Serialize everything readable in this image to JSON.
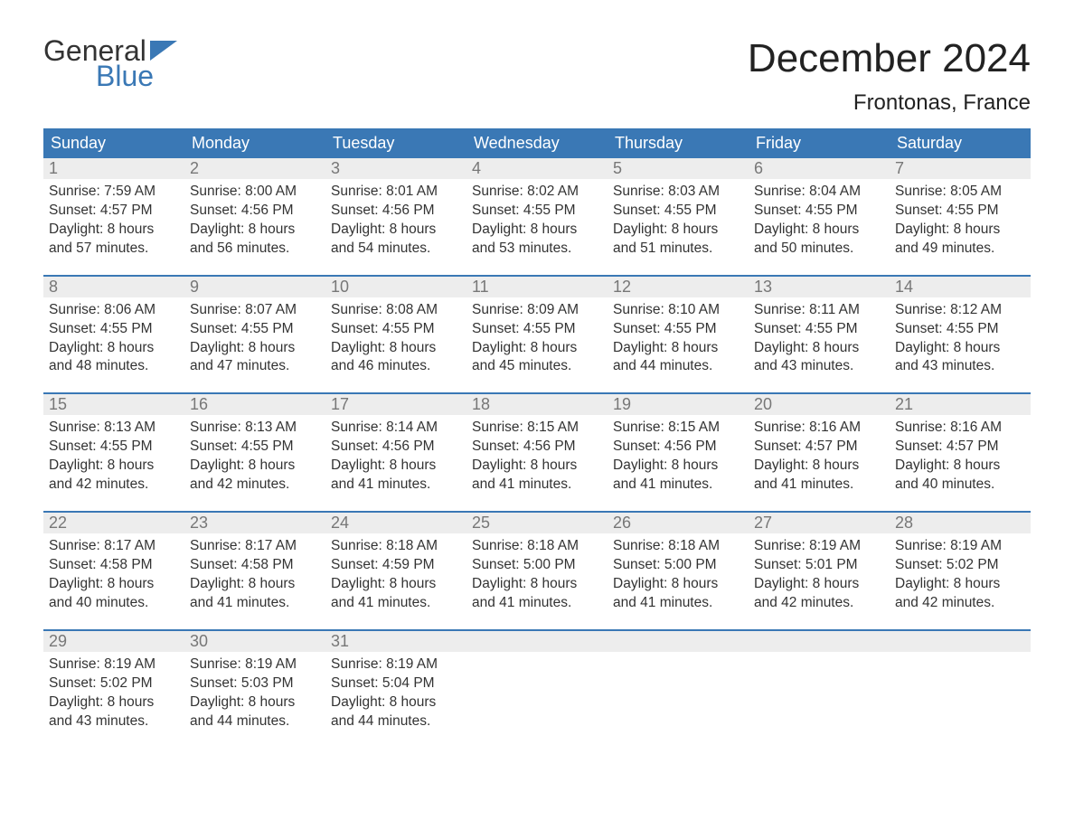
{
  "logo": {
    "word1": "General",
    "word2": "Blue",
    "accent_color": "#3a78b5"
  },
  "title": "December 2024",
  "location": "Frontonas, France",
  "header_bg": "#3a78b5",
  "header_fg": "#ffffff",
  "daynum_bg": "#ededed",
  "daynum_fg": "#777777",
  "body_fg": "#333333",
  "week_border": "#3a78b5",
  "weekdays": [
    "Sunday",
    "Monday",
    "Tuesday",
    "Wednesday",
    "Thursday",
    "Friday",
    "Saturday"
  ],
  "weeks": [
    [
      {
        "n": "1",
        "sunrise": "7:59 AM",
        "sunset": "4:57 PM",
        "dl1": "Daylight: 8 hours",
        "dl2": "and 57 minutes."
      },
      {
        "n": "2",
        "sunrise": "8:00 AM",
        "sunset": "4:56 PM",
        "dl1": "Daylight: 8 hours",
        "dl2": "and 56 minutes."
      },
      {
        "n": "3",
        "sunrise": "8:01 AM",
        "sunset": "4:56 PM",
        "dl1": "Daylight: 8 hours",
        "dl2": "and 54 minutes."
      },
      {
        "n": "4",
        "sunrise": "8:02 AM",
        "sunset": "4:55 PM",
        "dl1": "Daylight: 8 hours",
        "dl2": "and 53 minutes."
      },
      {
        "n": "5",
        "sunrise": "8:03 AM",
        "sunset": "4:55 PM",
        "dl1": "Daylight: 8 hours",
        "dl2": "and 51 minutes."
      },
      {
        "n": "6",
        "sunrise": "8:04 AM",
        "sunset": "4:55 PM",
        "dl1": "Daylight: 8 hours",
        "dl2": "and 50 minutes."
      },
      {
        "n": "7",
        "sunrise": "8:05 AM",
        "sunset": "4:55 PM",
        "dl1": "Daylight: 8 hours",
        "dl2": "and 49 minutes."
      }
    ],
    [
      {
        "n": "8",
        "sunrise": "8:06 AM",
        "sunset": "4:55 PM",
        "dl1": "Daylight: 8 hours",
        "dl2": "and 48 minutes."
      },
      {
        "n": "9",
        "sunrise": "8:07 AM",
        "sunset": "4:55 PM",
        "dl1": "Daylight: 8 hours",
        "dl2": "and 47 minutes."
      },
      {
        "n": "10",
        "sunrise": "8:08 AM",
        "sunset": "4:55 PM",
        "dl1": "Daylight: 8 hours",
        "dl2": "and 46 minutes."
      },
      {
        "n": "11",
        "sunrise": "8:09 AM",
        "sunset": "4:55 PM",
        "dl1": "Daylight: 8 hours",
        "dl2": "and 45 minutes."
      },
      {
        "n": "12",
        "sunrise": "8:10 AM",
        "sunset": "4:55 PM",
        "dl1": "Daylight: 8 hours",
        "dl2": "and 44 minutes."
      },
      {
        "n": "13",
        "sunrise": "8:11 AM",
        "sunset": "4:55 PM",
        "dl1": "Daylight: 8 hours",
        "dl2": "and 43 minutes."
      },
      {
        "n": "14",
        "sunrise": "8:12 AM",
        "sunset": "4:55 PM",
        "dl1": "Daylight: 8 hours",
        "dl2": "and 43 minutes."
      }
    ],
    [
      {
        "n": "15",
        "sunrise": "8:13 AM",
        "sunset": "4:55 PM",
        "dl1": "Daylight: 8 hours",
        "dl2": "and 42 minutes."
      },
      {
        "n": "16",
        "sunrise": "8:13 AM",
        "sunset": "4:55 PM",
        "dl1": "Daylight: 8 hours",
        "dl2": "and 42 minutes."
      },
      {
        "n": "17",
        "sunrise": "8:14 AM",
        "sunset": "4:56 PM",
        "dl1": "Daylight: 8 hours",
        "dl2": "and 41 minutes."
      },
      {
        "n": "18",
        "sunrise": "8:15 AM",
        "sunset": "4:56 PM",
        "dl1": "Daylight: 8 hours",
        "dl2": "and 41 minutes."
      },
      {
        "n": "19",
        "sunrise": "8:15 AM",
        "sunset": "4:56 PM",
        "dl1": "Daylight: 8 hours",
        "dl2": "and 41 minutes."
      },
      {
        "n": "20",
        "sunrise": "8:16 AM",
        "sunset": "4:57 PM",
        "dl1": "Daylight: 8 hours",
        "dl2": "and 41 minutes."
      },
      {
        "n": "21",
        "sunrise": "8:16 AM",
        "sunset": "4:57 PM",
        "dl1": "Daylight: 8 hours",
        "dl2": "and 40 minutes."
      }
    ],
    [
      {
        "n": "22",
        "sunrise": "8:17 AM",
        "sunset": "4:58 PM",
        "dl1": "Daylight: 8 hours",
        "dl2": "and 40 minutes."
      },
      {
        "n": "23",
        "sunrise": "8:17 AM",
        "sunset": "4:58 PM",
        "dl1": "Daylight: 8 hours",
        "dl2": "and 41 minutes."
      },
      {
        "n": "24",
        "sunrise": "8:18 AM",
        "sunset": "4:59 PM",
        "dl1": "Daylight: 8 hours",
        "dl2": "and 41 minutes."
      },
      {
        "n": "25",
        "sunrise": "8:18 AM",
        "sunset": "5:00 PM",
        "dl1": "Daylight: 8 hours",
        "dl2": "and 41 minutes."
      },
      {
        "n": "26",
        "sunrise": "8:18 AM",
        "sunset": "5:00 PM",
        "dl1": "Daylight: 8 hours",
        "dl2": "and 41 minutes."
      },
      {
        "n": "27",
        "sunrise": "8:19 AM",
        "sunset": "5:01 PM",
        "dl1": "Daylight: 8 hours",
        "dl2": "and 42 minutes."
      },
      {
        "n": "28",
        "sunrise": "8:19 AM",
        "sunset": "5:02 PM",
        "dl1": "Daylight: 8 hours",
        "dl2": "and 42 minutes."
      }
    ],
    [
      {
        "n": "29",
        "sunrise": "8:19 AM",
        "sunset": "5:02 PM",
        "dl1": "Daylight: 8 hours",
        "dl2": "and 43 minutes."
      },
      {
        "n": "30",
        "sunrise": "8:19 AM",
        "sunset": "5:03 PM",
        "dl1": "Daylight: 8 hours",
        "dl2": "and 44 minutes."
      },
      {
        "n": "31",
        "sunrise": "8:19 AM",
        "sunset": "5:04 PM",
        "dl1": "Daylight: 8 hours",
        "dl2": "and 44 minutes."
      },
      {
        "empty": true
      },
      {
        "empty": true
      },
      {
        "empty": true
      },
      {
        "empty": true
      }
    ]
  ],
  "labels": {
    "sunrise": "Sunrise: ",
    "sunset": "Sunset: "
  }
}
